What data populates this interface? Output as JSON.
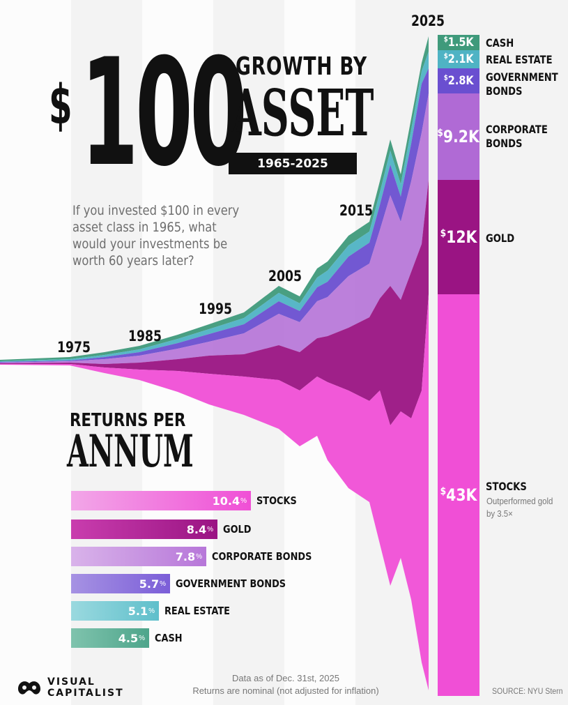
{
  "header": {
    "dollar": "$",
    "amount": "100",
    "growth_by": "GROWTH BY",
    "asset": "ASSET",
    "years": "1965-2025",
    "intro": "If you invested $100 in every asset class in 1965, what would your investments be worth 60 years later?"
  },
  "year_labels": [
    "1975",
    "1985",
    "1995",
    "2005",
    "2015",
    "2025"
  ],
  "returns_title": {
    "line1": "RETURNS PER",
    "line2": "ANNUM"
  },
  "returns": [
    {
      "name": "STOCKS",
      "value": "10.4",
      "pct": "%",
      "color": "#f04fd6",
      "color_light": "#f2a7e8"
    },
    {
      "name": "GOLD",
      "value": "8.4",
      "pct": "%",
      "color": "#9a1483",
      "color_light": "#c93dae"
    },
    {
      "name": "CORPORATE BONDS",
      "value": "7.8",
      "pct": "%",
      "color": "#b777d9",
      "color_light": "#d9b3ea"
    },
    {
      "name": "GOVERNMENT BONDS",
      "value": "5.7",
      "pct": "%",
      "color": "#7b5ed8",
      "color_light": "#a692e3"
    },
    {
      "name": "REAL ESTATE",
      "value": "5.1",
      "pct": "%",
      "color": "#5fbfcb",
      "color_light": "#9ad9df"
    },
    {
      "name": "CASH",
      "value": "4.5",
      "pct": "%",
      "color": "#4ea58b",
      "color_light": "#7fc3ad"
    }
  ],
  "final_values": [
    {
      "name": "CASH",
      "display": "1.5K",
      "symbol": "$",
      "color": "#3f9a7b"
    },
    {
      "name": "REAL ESTATE",
      "display": "2.1K",
      "symbol": "$",
      "color": "#4fb3c4"
    },
    {
      "name": "GOVERNMENT BONDS",
      "display": "2.8K",
      "symbol": "$",
      "color": "#6a4fd0"
    },
    {
      "name": "CORPORATE BONDS",
      "display": "9.2K",
      "symbol": "$",
      "color": "#b06ad5"
    },
    {
      "name": "GOLD",
      "display": "12K",
      "symbol": "$",
      "color": "#9a1483"
    },
    {
      "name": "STOCKS",
      "display": "43K",
      "symbol": "$",
      "color": "#f04fd6"
    }
  ],
  "stocks_note": "Outperformed gold by 3.5×",
  "footer": {
    "data_as_of": "Data as of Dec. 31st, 2025",
    "returns_note": "Returns are nominal (not adjusted for inflation)",
    "source": "SOURCE: NYU Stern",
    "brand_line1": "VISUAL",
    "brand_line2": "CAPITALIST"
  },
  "chart_data": [
    {
      "type": "area",
      "title": "$100 Growth by Asset 1965-2025",
      "subtitle": "streamgraph",
      "x": [
        1965,
        1975,
        1985,
        1995,
        2005,
        2015,
        2025
      ],
      "series": [
        {
          "name": "Stocks",
          "values": [
            100,
            200,
            900,
            3000,
            6000,
            15000,
            43000
          ]
        },
        {
          "name": "Gold",
          "values": [
            100,
            500,
            900,
            1100,
            1600,
            3700,
            12000
          ]
        },
        {
          "name": "Corporate Bonds",
          "values": [
            100,
            200,
            550,
            1700,
            3500,
            6000,
            9200
          ]
        },
        {
          "name": "Government Bonds",
          "values": [
            100,
            180,
            400,
            1000,
            1700,
            2500,
            2800
          ]
        },
        {
          "name": "Real Estate",
          "values": [
            100,
            180,
            450,
            750,
            1300,
            1700,
            2100
          ]
        },
        {
          "name": "Cash",
          "values": [
            100,
            170,
            370,
            640,
            900,
            1000,
            1500
          ]
        }
      ]
    },
    {
      "type": "bar",
      "title": "Returns Per Annum",
      "categories": [
        "Stocks",
        "Gold",
        "Corporate Bonds",
        "Government Bonds",
        "Real Estate",
        "Cash"
      ],
      "values": [
        10.4,
        8.4,
        7.8,
        5.7,
        5.1,
        4.5
      ],
      "ylabel": "%",
      "ylim": [
        0,
        12
      ]
    }
  ]
}
